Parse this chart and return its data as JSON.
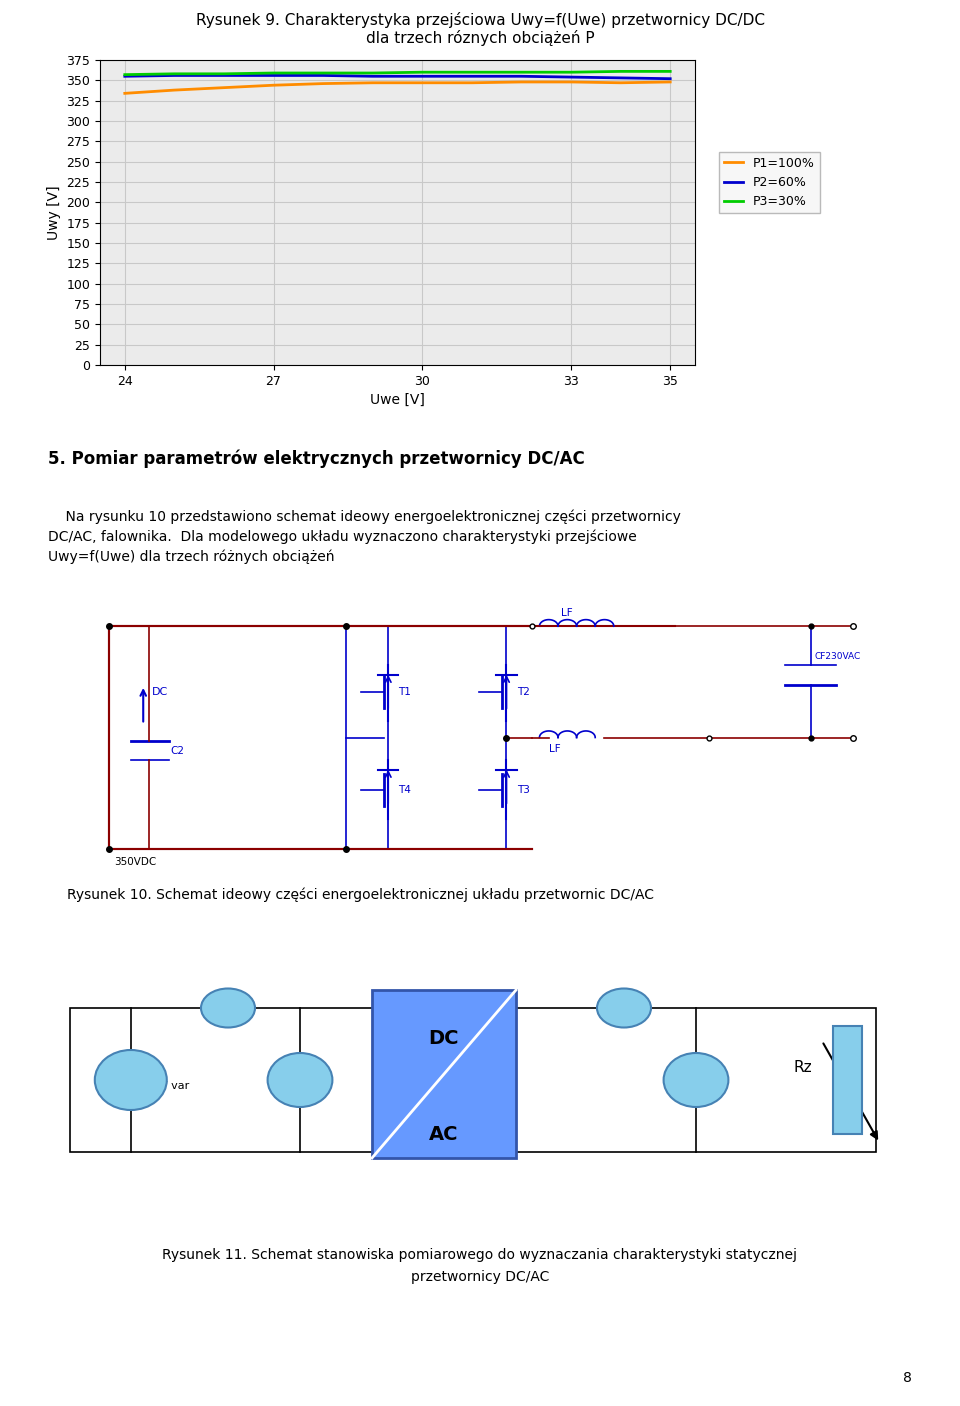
{
  "title_chart_line1": "Rysunek 9. Charakterystyka przejściowa Uwy=f(Uwe) przetwornicy DC/DC",
  "title_chart_line2": "dla trzech róznych obciążeń P",
  "xlabel": "Uwe [V]",
  "ylabel": "Uwy [V]",
  "xlim": [
    23.5,
    35.5
  ],
  "ylim": [
    0,
    375
  ],
  "xticks": [
    24,
    27,
    30,
    33,
    35
  ],
  "yticks": [
    0,
    25,
    50,
    75,
    100,
    125,
    150,
    175,
    200,
    225,
    250,
    275,
    300,
    325,
    350,
    375
  ],
  "P1_color": "#FF8C00",
  "P2_color": "#0000CD",
  "P3_color": "#00CC00",
  "P1_x": [
    24,
    25,
    26,
    27,
    28,
    29,
    30,
    31,
    32,
    33,
    34,
    35
  ],
  "P1_y": [
    334,
    338,
    341,
    344,
    346,
    347,
    347,
    347,
    348,
    348,
    347,
    348
  ],
  "P2_x": [
    24,
    25,
    26,
    27,
    28,
    29,
    30,
    31,
    32,
    33,
    34,
    35
  ],
  "P2_y": [
    355,
    356,
    356,
    356,
    356,
    355,
    355,
    355,
    355,
    354,
    353,
    352
  ],
  "P3_x": [
    24,
    25,
    26,
    27,
    28,
    29,
    30,
    31,
    32,
    33,
    34,
    35
  ],
  "P3_y": [
    357,
    358,
    358,
    359,
    359,
    359,
    360,
    360,
    360,
    360,
    361,
    361
  ],
  "legend_labels": [
    "P1=100%",
    "P2=60%",
    "P3=30%"
  ],
  "section_title": "5. Pomiar parametrów elektrycznych przetwornicy DC/AC",
  "para_line1": "    Na rysunku 10 przedstawiono schemat ideowy energoelektronicznej części przetwornicy",
  "para_line2": "DC/AC, falownika.  Dla modelowego układu wyznaczono charakterystyki przejściowe",
  "para_line3": "Uwy=f(Uwe) dla trzech różnych obciążeń",
  "fig10_caption": "Rysunek 10. Schemat ideowy części energoelektronicznej układu przetwornic DC/AC",
  "fig11_caption_line1": "Rysunek 11. Schemat stanowiska pomiarowego do wyznaczania charakterystyki statycznej",
  "fig11_caption_line2": "przetwornicy DC/AC",
  "page_number": "8",
  "bg_color": "#FFFFFF",
  "grid_color": "#C8C8C8",
  "axis_bg": "#EBEBEB",
  "blue": "#0000CC",
  "dark_red": "#8B0000",
  "ellipse_color": "#87CEEB",
  "ellipse_edge": "#4682B4",
  "dc_box_color": "#6699FF"
}
